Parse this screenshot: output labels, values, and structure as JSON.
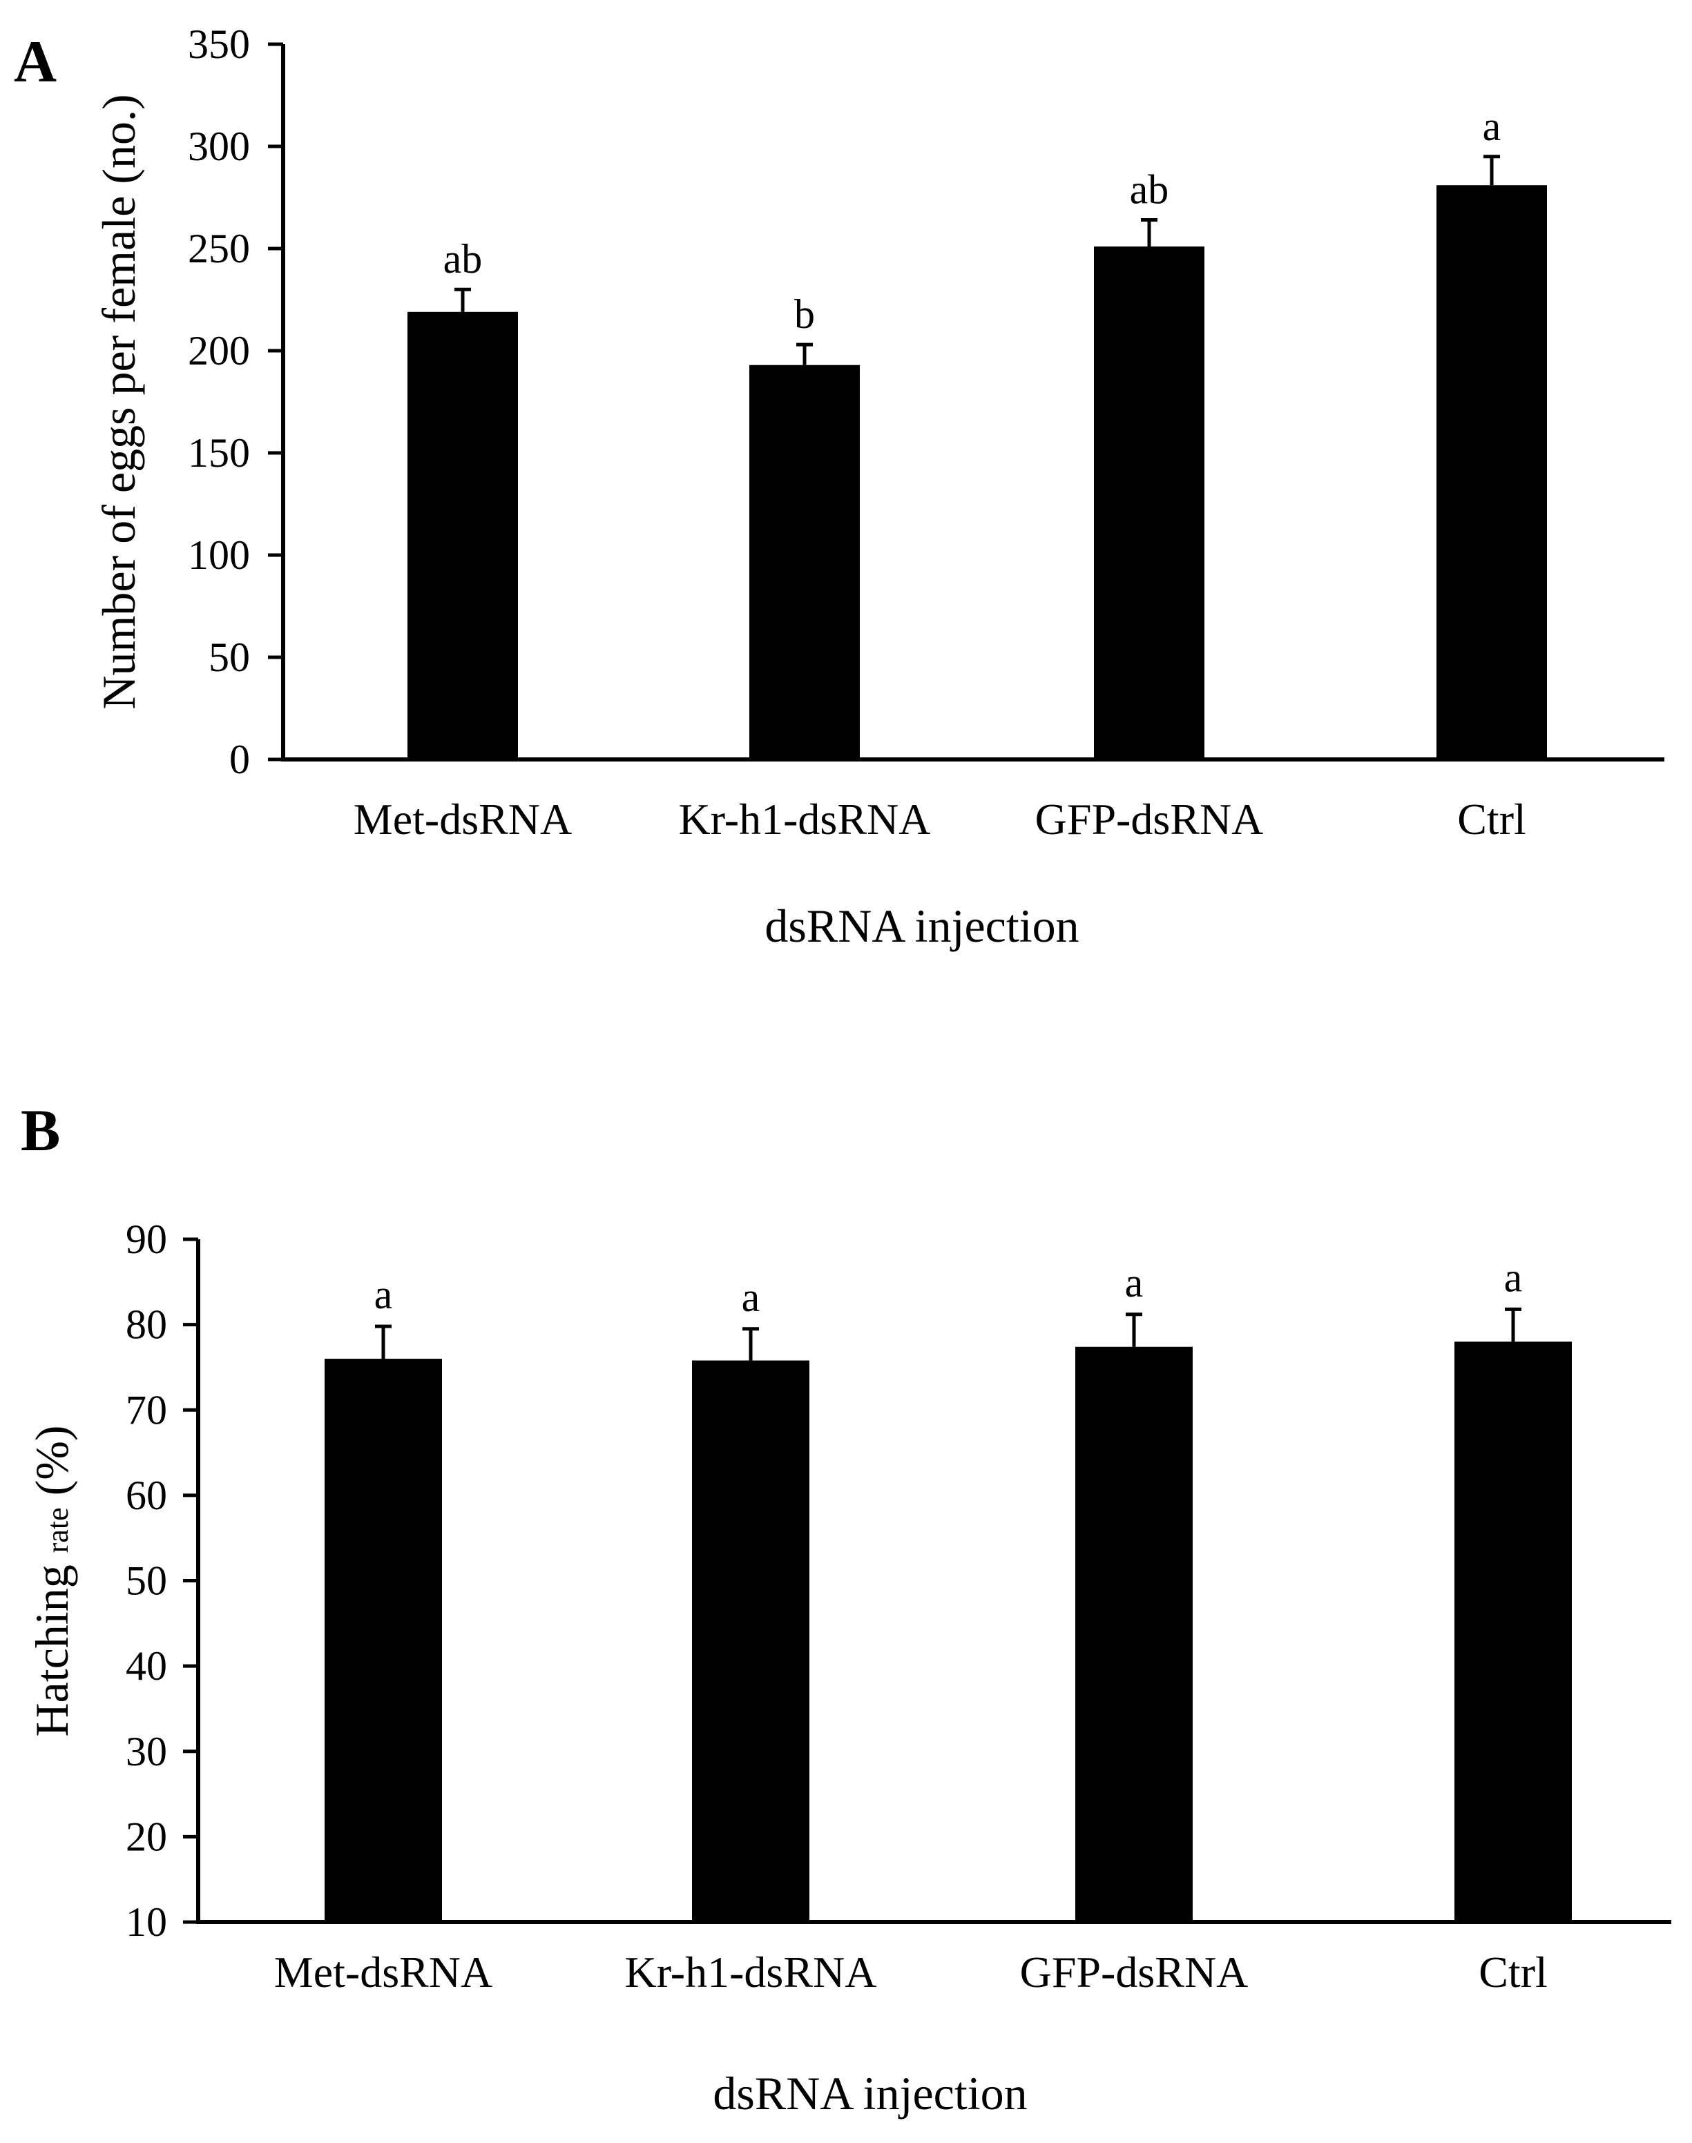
{
  "chart_data": [
    {
      "panel": "A",
      "type": "bar",
      "categories": [
        "Met-dsRNA",
        "Kr-h1-dsRNA",
        "GFP-dsRNA",
        "Ctrl"
      ],
      "values": [
        219,
        193,
        251,
        281
      ],
      "errors": [
        11,
        10,
        13,
        14
      ],
      "significance": [
        "ab",
        "b",
        "ab",
        "a"
      ],
      "xlabel": "dsRNA injection",
      "ylabel": "Number of eggs per female (no.)",
      "ylim": [
        0,
        350
      ],
      "yticks": [
        0,
        50,
        100,
        150,
        200,
        250,
        300,
        350
      ],
      "color": "#000000"
    },
    {
      "panel": "B",
      "type": "bar",
      "categories": [
        "Met-dsRNA",
        "Kr-h1-dsRNA",
        "GFP-dsRNA",
        "Ctrl"
      ],
      "values": [
        76,
        75.8,
        77.4,
        78
      ],
      "errors": [
        3.8,
        3.7,
        3.8,
        3.8
      ],
      "significance": [
        "a",
        "a",
        "a",
        "a"
      ],
      "xlabel": "dsRNA injection",
      "ylabel_main": "Hatching",
      "ylabel_small": "rate",
      "ylabel_end": "(%)",
      "ylim": [
        10,
        90
      ],
      "yticks": [
        10,
        20,
        30,
        40,
        50,
        60,
        70,
        80,
        90
      ],
      "color": "#000000"
    }
  ]
}
